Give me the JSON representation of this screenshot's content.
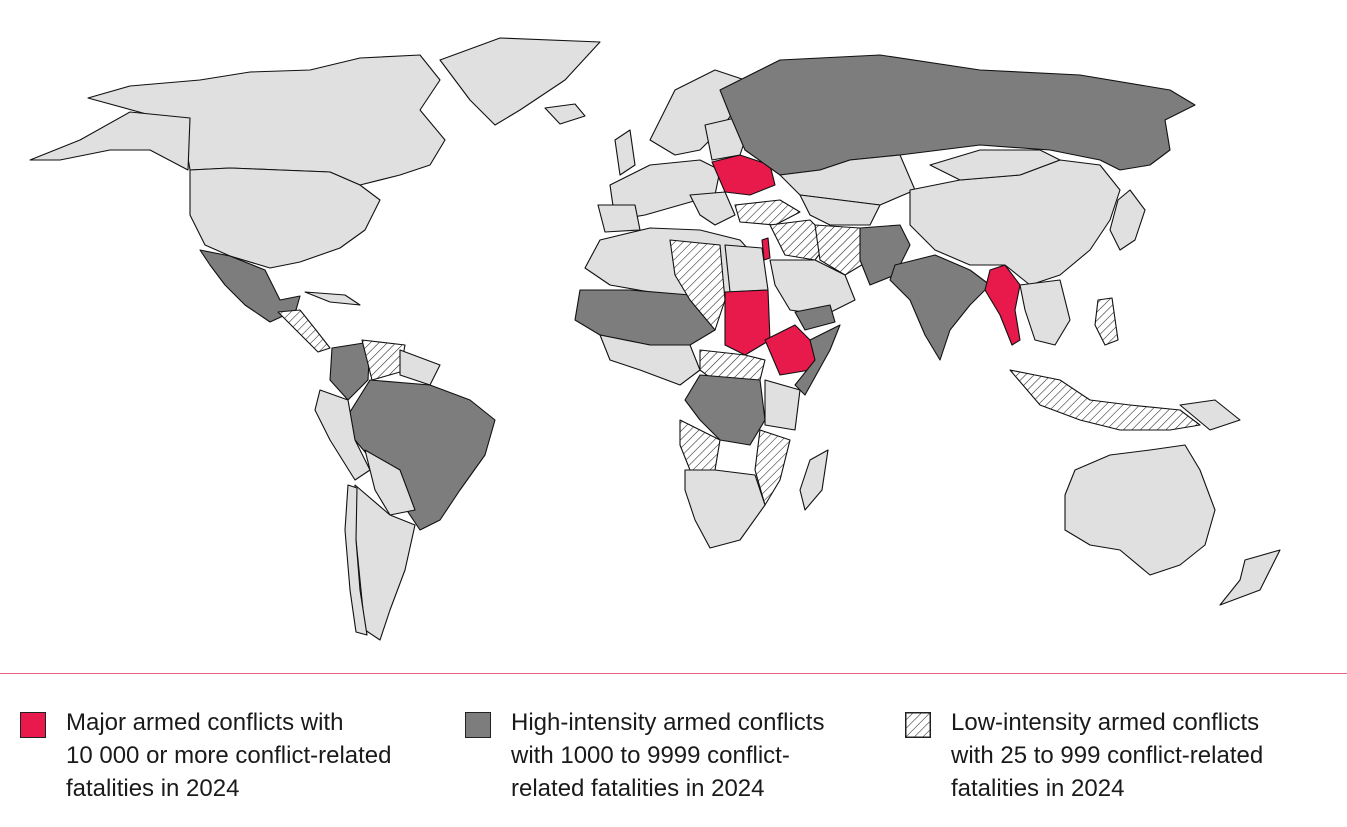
{
  "colors": {
    "major": "#e8194b",
    "high": "#7d7d7d",
    "low_pattern": "hatched",
    "no_conflict": "#e0e0e1",
    "divider": "#e8607e"
  },
  "legend": [
    {
      "category": "major",
      "lines": [
        "Major armed conflicts with",
        "10 000 or more conflict-related",
        "fatalities in 2024"
      ]
    },
    {
      "category": "high",
      "lines": [
        "High-intensity armed conflicts",
        "with 1000 to 9999 conflict-",
        "related fatalities in 2024"
      ]
    },
    {
      "category": "low",
      "lines": [
        "Low-intensity armed conflicts",
        "with 25 to 999 conflict-related",
        "fatalities in 2024"
      ]
    }
  ]
}
